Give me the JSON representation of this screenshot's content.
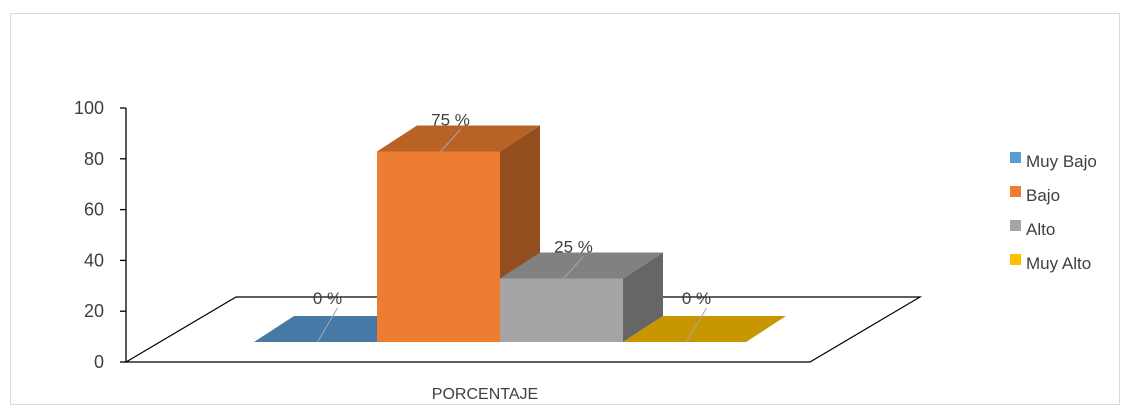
{
  "chart_data": {
    "type": "bar",
    "categories": [
      "PORCENTAJE"
    ],
    "series": [
      {
        "name": "Muy Bajo",
        "values": [
          0
        ],
        "color": "#5b9bd5",
        "label": "0 %"
      },
      {
        "name": "Bajo",
        "values": [
          75
        ],
        "color": "#ed7d31",
        "label": "75 %"
      },
      {
        "name": "Alto",
        "values": [
          25
        ],
        "color": "#a5a5a5",
        "label": "25 %"
      },
      {
        "name": "Muy Alto",
        "values": [
          0
        ],
        "color": "#ffc000",
        "label": "0 %"
      }
    ],
    "yticks": [
      0,
      20,
      40,
      60,
      80,
      100
    ],
    "ylim": [
      0,
      100
    ],
    "legend": "right",
    "style": "3d-column"
  }
}
